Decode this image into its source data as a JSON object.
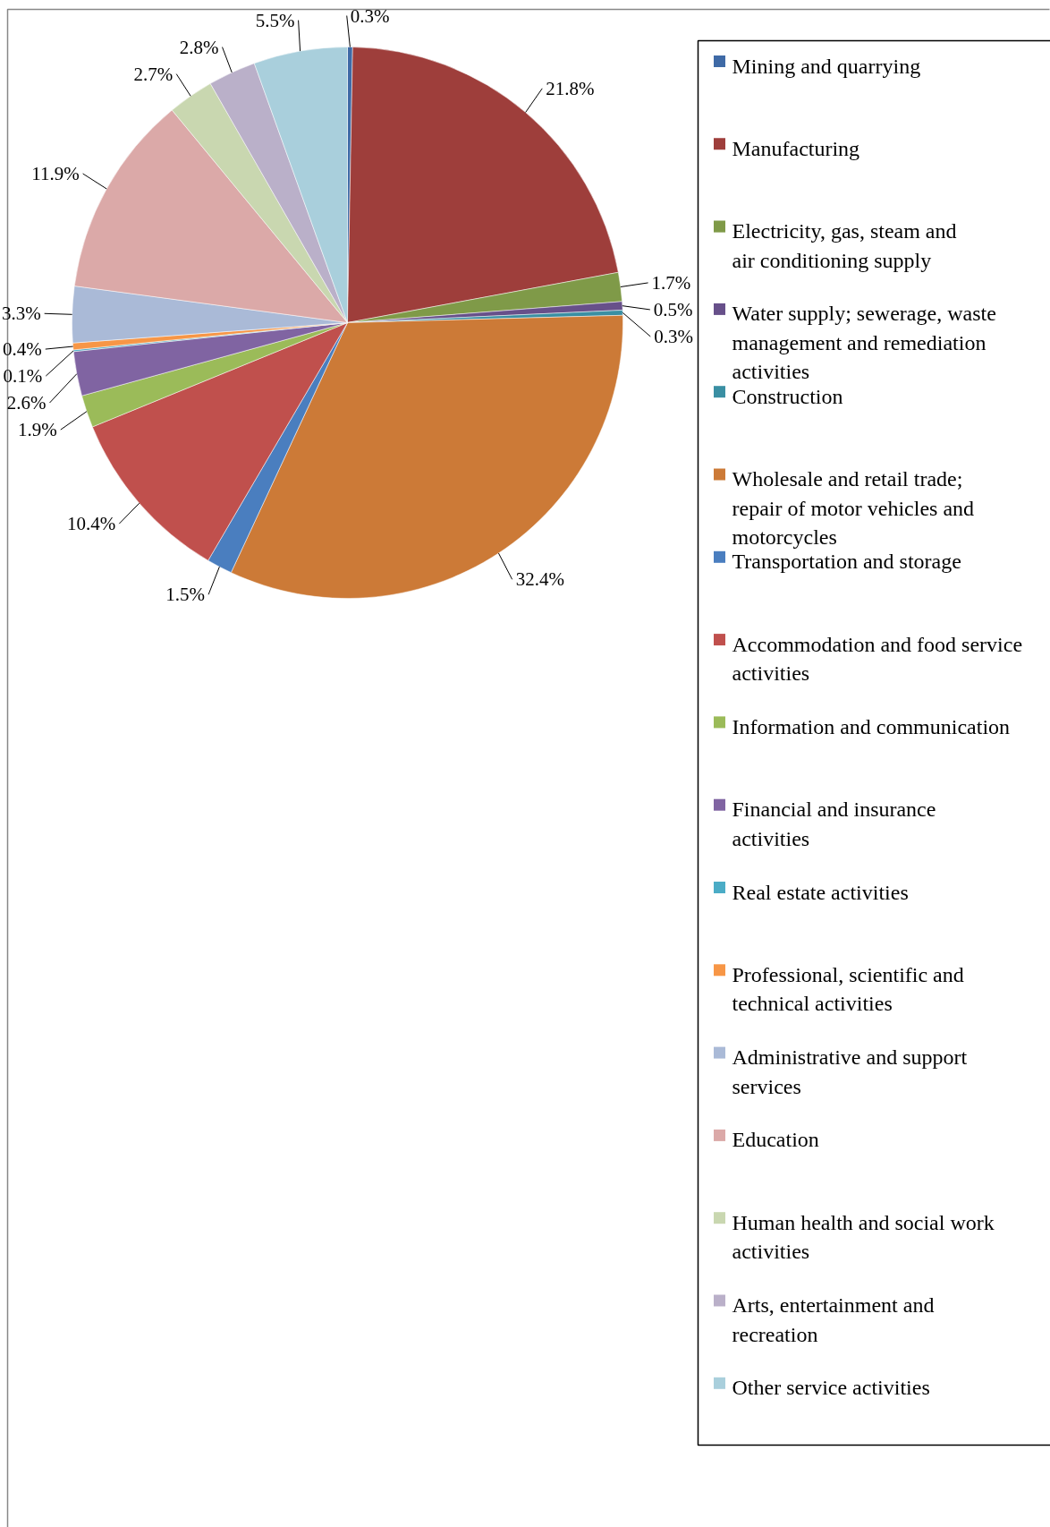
{
  "chart_data": {
    "type": "pie",
    "categories": [
      "Mining and quarrying",
      "Manufacturing",
      "Electricity, gas, steam and air conditioning supply",
      "Water supply; sewerage, waste management and remediation activities",
      "Construction",
      "Wholesale and retail trade; repair of motor vehicles and motorcycles",
      "Transportation and storage",
      "Accommodation and food service activities",
      "Information and communication",
      "Financial and insurance activities",
      "Real estate activities",
      "Professional, scientific and technical activities",
      "Administrative and support services",
      "Education",
      "Human health and social work activities",
      "Arts, entertainment and recreation",
      "Other service activities"
    ],
    "values": [
      0.3,
      21.8,
      1.7,
      0.5,
      0.3,
      32.4,
      1.5,
      10.4,
      1.9,
      2.6,
      0.1,
      0.4,
      3.3,
      11.9,
      2.7,
      2.8,
      5.5
    ],
    "value_labels": [
      "0.3%",
      "21.8%",
      "1.7%",
      "0.5%",
      "0.3%",
      "32.4%",
      "1.5%",
      "10.4%",
      "1.9%",
      "2.6%",
      "0.1%",
      "0.4%",
      "3.3%",
      "11.9%",
      "2.7%",
      "2.8%",
      "5.5%"
    ],
    "colors": [
      "#3f6aa6",
      "#9e3e3b",
      "#7f9a48",
      "#67508a",
      "#3a8fa3",
      "#cc7a37",
      "#4a7ebf",
      "#c0504d",
      "#9bbb59",
      "#8064a2",
      "#4bacc6",
      "#f79646",
      "#aabad7",
      "#dba9a8",
      "#c9d7b0",
      "#bab0c9",
      "#a9cfdc"
    ],
    "legend": "right"
  }
}
